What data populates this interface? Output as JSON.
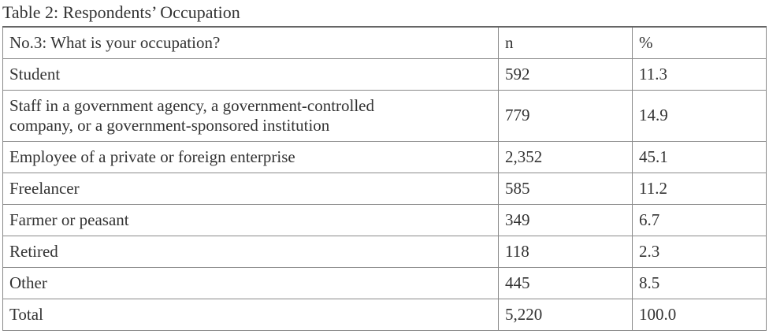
{
  "title": "Table 2: Respondents’ Occupation",
  "table": {
    "header": [
      "No.3: What is your occupation?",
      "n",
      "%"
    ],
    "rows": [
      [
        [
          "Student"
        ],
        "592",
        "11.3"
      ],
      [
        [
          "Staff in a government agency, a government-controlled",
          "company, or a government-sponsored institution"
        ],
        "779",
        "14.9"
      ],
      [
        [
          "Employee of a private or foreign enterprise"
        ],
        "2,352",
        "45.1"
      ],
      [
        [
          "Freelancer"
        ],
        "585",
        "11.2"
      ],
      [
        [
          "Farmer or peasant"
        ],
        "349",
        "6.7"
      ],
      [
        [
          "Retired"
        ],
        "118",
        "2.3"
      ],
      [
        [
          "Other"
        ],
        "445",
        "8.5"
      ],
      [
        [
          "Total"
        ],
        "5,220",
        "100.0"
      ]
    ]
  }
}
